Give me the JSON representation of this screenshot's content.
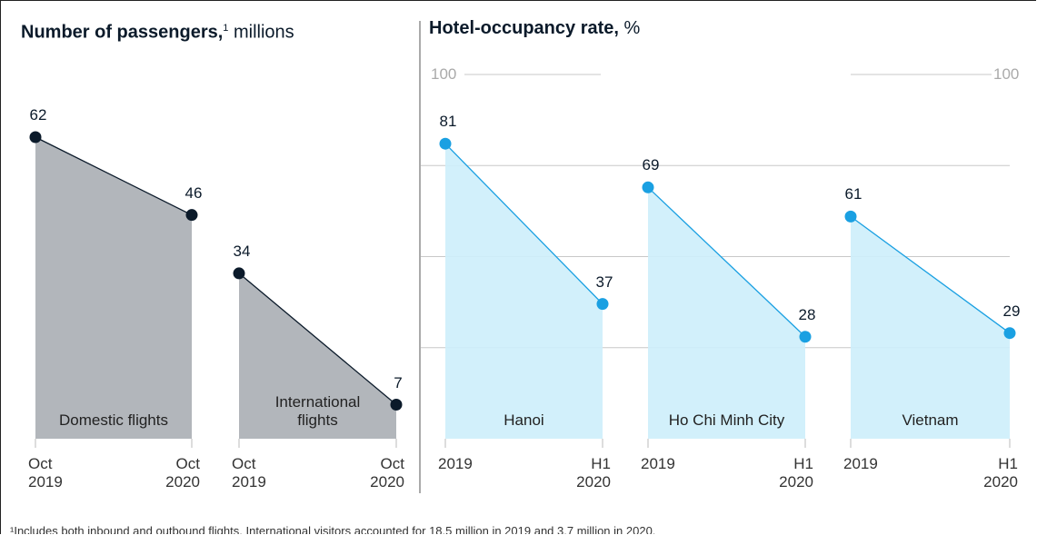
{
  "chart_data": [
    {
      "type": "area",
      "title": "Number of passengers,",
      "title_note": "1",
      "title_unit": "millions",
      "color": "#b2b6bb",
      "line_color": "#0b1a2a",
      "panels": [
        {
          "label": "Domestic flights",
          "x": [
            "Oct 2019",
            "Oct 2020"
          ],
          "values": [
            62,
            46
          ]
        },
        {
          "label": "International flights",
          "x": [
            "Oct 2019",
            "Oct 2020"
          ],
          "values": [
            34,
            7
          ]
        }
      ]
    },
    {
      "type": "area",
      "title": "Hotel-occupancy rate,",
      "title_unit": "%",
      "color": "#cdeefb",
      "line_color": "#1aa0e2",
      "ylim": [
        0,
        100
      ],
      "yticks": [
        {
          "value": 25,
          "label": null
        },
        {
          "value": 50,
          "label": null
        },
        {
          "value": 75,
          "label": null
        },
        {
          "value": 100,
          "label": "100"
        }
      ],
      "grid": true,
      "panels": [
        {
          "label": "Hanoi",
          "x": [
            "2019",
            "H1 2020"
          ],
          "values": [
            81,
            37
          ]
        },
        {
          "label": "Ho Chi Minh City",
          "x": [
            "2019",
            "H1 2020"
          ],
          "values": [
            69,
            28
          ]
        },
        {
          "label": "Vietnam",
          "x": [
            "2019",
            "H1 2020"
          ],
          "values": [
            61,
            29
          ]
        }
      ]
    }
  ],
  "footnote": "¹Includes both inbound and outbound flights. International visitors accounted for 18.5 million in 2019 and 3.7 million in 2020."
}
